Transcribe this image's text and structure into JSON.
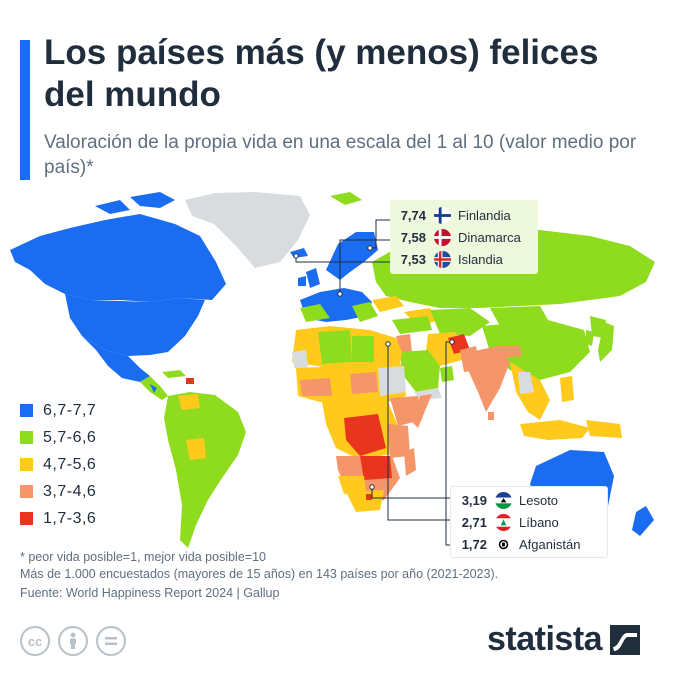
{
  "header": {
    "title": "Los países más (y menos) felices del mundo",
    "subtitle": "Valoración de la propia vida en una escala del 1 al 10 (valor medio por país)*"
  },
  "legend": [
    {
      "label": "6,7-7,7",
      "color": "#1a6cf0"
    },
    {
      "label": "5,7-6,6",
      "color": "#8fdc1e"
    },
    {
      "label": "4,7-5,6",
      "color": "#ffca1c"
    },
    {
      "label": "3,7-4,6",
      "color": "#f5966a"
    },
    {
      "label": "1,7-3,6",
      "color": "#e8361e"
    }
  ],
  "colors": {
    "no_data": "#d9dcdf"
  },
  "callouts": {
    "top": [
      {
        "value": "7,74",
        "country": "Finlandia",
        "flag": "finland-flag-icon"
      },
      {
        "value": "7,58",
        "country": "Dinamarca",
        "flag": "denmark-flag-icon"
      },
      {
        "value": "7,53",
        "country": "Islandia",
        "flag": "iceland-flag-icon"
      }
    ],
    "bottom": [
      {
        "value": "3,19",
        "country": "Lesoto",
        "flag": "lesotho-flag-icon"
      },
      {
        "value": "2,71",
        "country": "Líbano",
        "flag": "lebanon-flag-icon"
      },
      {
        "value": "1,72",
        "country": "Afganistán",
        "flag": "afghanistan-flag-icon"
      }
    ]
  },
  "notes": {
    "footnote": "* peor vida posible=1, mejor vida posible=10",
    "sample": "Más de 1.000 encuestados (mayores de 15 años) en 143 países por año (2021-2023).",
    "source": "Fuente: World Happiness Report 2024 | Gallup"
  },
  "brand": {
    "name": "statista"
  },
  "license_icons": [
    "cc-icon",
    "attribution-icon",
    "no-derivatives-icon"
  ]
}
